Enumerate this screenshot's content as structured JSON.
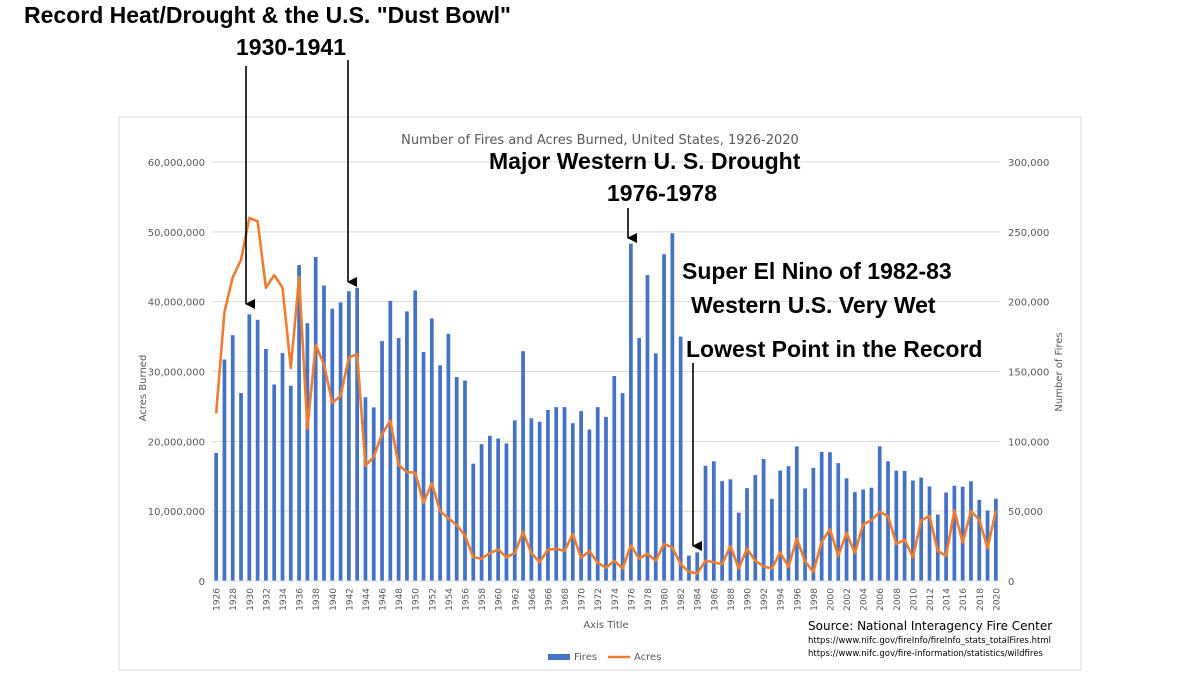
{
  "annotations": {
    "dust_bowl_line1": "Record Heat/Drought & the U.S. \"Dust Bowl\"",
    "dust_bowl_line2": "1930-1941",
    "western_drought_line1": "Major Western U. S. Drought",
    "western_drought_line2": "1976-1978",
    "el_nino_line1": "Super El Nino of 1982-83",
    "el_nino_line2": "Western U.S. Very Wet",
    "lowest_point": "Lowest Point in the Record"
  },
  "source": {
    "label": "Source: National Interagency Fire Center",
    "url1": "https://www.nifc.gov/fireInfo/fireInfo_stats_totalFires.html",
    "url2": "https://www.nifc.gov/fire-information/statistics/wildfires"
  },
  "chart_data": {
    "type": "bar+line",
    "title": "Number of Fires and Acres Burned, United States, 1926-2020",
    "xlabel": "Axis Title",
    "ylabel_left": "Acres Burned",
    "ylabel_right": "Number  of Fires",
    "ylim_left": [
      0,
      60000000
    ],
    "ylim_right": [
      0,
      300000
    ],
    "yticks_left": [
      "0",
      "10,000,000",
      "20,000,000",
      "30,000,000",
      "40,000,000",
      "50,000,000",
      "60,000,000"
    ],
    "yticks_right": [
      "0",
      "50,000",
      "100,000",
      "150,000",
      "200,000",
      "250,000",
      "300,000"
    ],
    "years": [
      1926,
      1927,
      1928,
      1929,
      1930,
      1931,
      1932,
      1933,
      1934,
      1935,
      1936,
      1937,
      1938,
      1939,
      1940,
      1941,
      1942,
      1943,
      1944,
      1945,
      1946,
      1947,
      1948,
      1949,
      1950,
      1951,
      1952,
      1953,
      1954,
      1955,
      1956,
      1957,
      1958,
      1959,
      1960,
      1961,
      1962,
      1963,
      1964,
      1965,
      1966,
      1967,
      1968,
      1969,
      1970,
      1971,
      1972,
      1973,
      1974,
      1975,
      1976,
      1977,
      1978,
      1979,
      1980,
      1981,
      1982,
      1983,
      1984,
      1985,
      1986,
      1987,
      1988,
      1989,
      1990,
      1991,
      1992,
      1993,
      1994,
      1995,
      1996,
      1997,
      1998,
      1999,
      2000,
      2001,
      2002,
      2003,
      2004,
      2005,
      2006,
      2007,
      2008,
      2009,
      2010,
      2011,
      2012,
      2013,
      2014,
      2015,
      2016,
      2017,
      2018,
      2019,
      2020
    ],
    "series": [
      {
        "name": "Fires",
        "type": "bar",
        "axis": "right",
        "color": "#4472c4",
        "values": [
          91700,
          158600,
          176000,
          134600,
          190900,
          187000,
          166100,
          140700,
          163100,
          139800,
          226200,
          184600,
          232000,
          211600,
          195000,
          199500,
          207500,
          210000,
          131600,
          124300,
          171800,
          200600,
          174000,
          193000,
          208000,
          164000,
          188000,
          154500,
          177000,
          146000,
          143500,
          84000,
          98000,
          104000,
          102000,
          98500,
          115000,
          164500,
          116500,
          114000,
          122500,
          124500,
          124500,
          113000,
          121700,
          108500,
          124500,
          117500,
          146800,
          134500,
          241500,
          174000,
          219000,
          163000,
          234000,
          249000,
          175000,
          18200,
          20500,
          82500,
          85700,
          71500,
          72800,
          48900,
          66500,
          75800,
          87400,
          58800,
          79100,
          82200,
          96400,
          66300,
          81000,
          92500,
          92200,
          84400,
          73500,
          63600,
          65500,
          66800,
          96400,
          85700,
          79000,
          78800,
          71900,
          74100,
          67700,
          47600,
          63300,
          68200,
          67500,
          71400,
          58100,
          50500,
          59000
        ]
      },
      {
        "name": "Acres",
        "type": "line",
        "axis": "left",
        "color": "#ed7d31",
        "values": [
          24000000,
          38500000,
          43500000,
          46000000,
          52000000,
          51500000,
          42000000,
          43800000,
          42000000,
          30500000,
          43500000,
          21800000,
          33800000,
          31000000,
          25500000,
          26500000,
          32000000,
          32500000,
          16500000,
          17800000,
          21000000,
          23000000,
          16600000,
          15600000,
          15500000,
          11200000,
          14000000,
          10000000,
          9000000,
          8000000,
          6500000,
          3400000,
          3200000,
          4000000,
          4500000,
          3400000,
          4000000,
          7000000,
          4000000,
          2700000,
          4500000,
          4600000,
          4300000,
          6700000,
          3300000,
          4300000,
          2600000,
          1900000,
          2900000,
          1800000,
          5100000,
          3200000,
          3900000,
          2900000,
          5300000,
          4800000,
          2400000,
          1300000,
          1100000,
          2900000,
          2700000,
          2400000,
          5000000,
          1800000,
          4600000,
          2900000,
          2100000,
          1800000,
          4100000,
          2000000,
          6100000,
          2800000,
          1300000,
          5600000,
          7400000,
          3600000,
          6900000,
          4000000,
          8100000,
          8700000,
          9900000,
          9300000,
          5300000,
          5900000,
          3400000,
          8700000,
          9300000,
          4300000,
          3600000,
          10100000,
          5500000,
          10000000,
          8800000,
          4700000,
          10100000
        ]
      }
    ],
    "legend": [
      "Fires",
      "Acres"
    ],
    "legend_position": "bottom"
  }
}
